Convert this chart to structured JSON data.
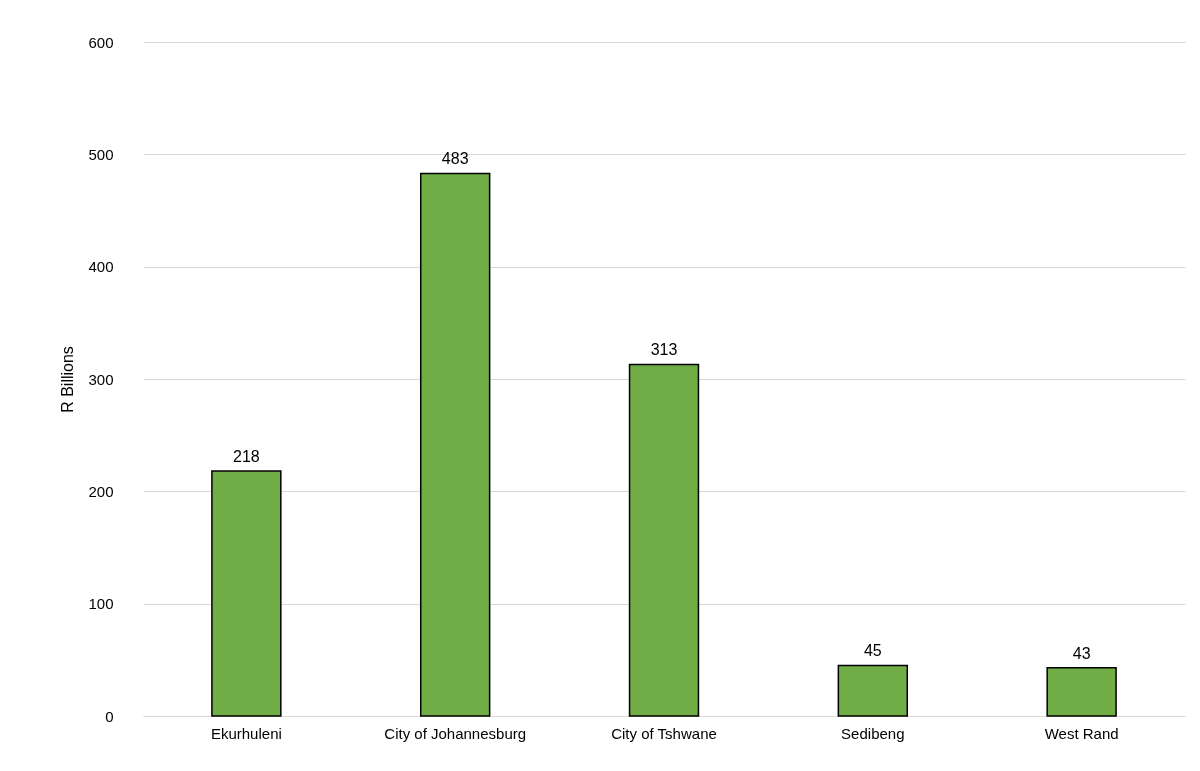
{
  "chart_data": {
    "type": "bar",
    "ylabel": "R Billions",
    "categories": [
      "Ekurhuleni",
      "City of Johannesburg",
      "City of Tshwane",
      "Sedibeng",
      "West Rand"
    ],
    "values": [
      218,
      483,
      313,
      45,
      43
    ],
    "color": "#70ad47",
    "ylim": [
      0,
      600
    ],
    "yticks": [
      0,
      100,
      200,
      300,
      400,
      500,
      600
    ],
    "grid": "y",
    "data_labels": true
  }
}
